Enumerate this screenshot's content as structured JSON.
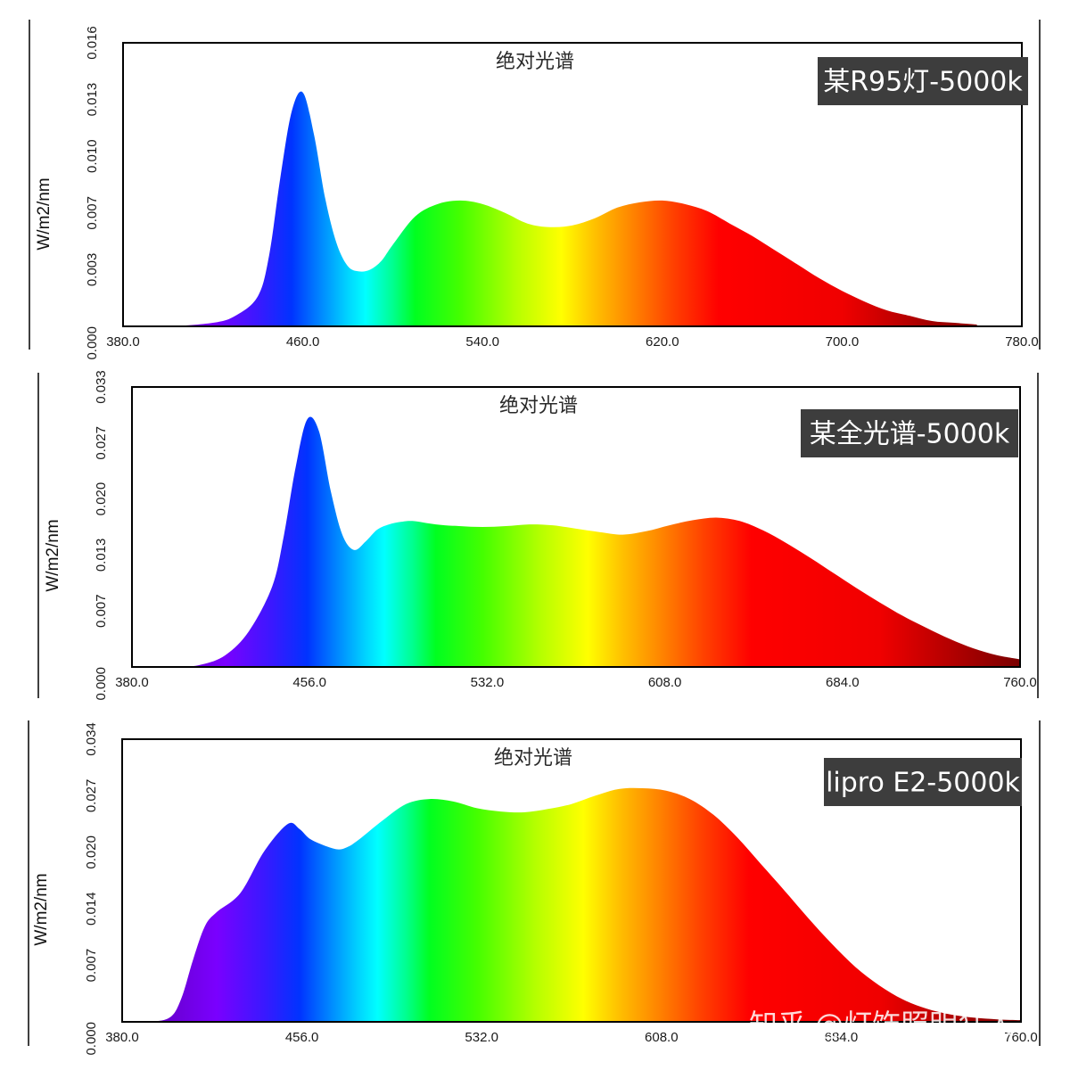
{
  "watermark": "知乎 @灯饰照明狂人",
  "spectrum_stops": [
    {
      "nm": 380,
      "color": "#5a00a8"
    },
    {
      "nm": 420,
      "color": "#7a00ff"
    },
    {
      "nm": 440,
      "color": "#3a18ff"
    },
    {
      "nm": 455,
      "color": "#0033ff"
    },
    {
      "nm": 468,
      "color": "#0088ff"
    },
    {
      "nm": 480,
      "color": "#00d4ff"
    },
    {
      "nm": 488,
      "color": "#00ffff"
    },
    {
      "nm": 500,
      "color": "#00ff90"
    },
    {
      "nm": 510,
      "color": "#00ff20"
    },
    {
      "nm": 530,
      "color": "#44ff00"
    },
    {
      "nm": 555,
      "color": "#b6ff00"
    },
    {
      "nm": 575,
      "color": "#ffff00"
    },
    {
      "nm": 590,
      "color": "#ffc000"
    },
    {
      "nm": 605,
      "color": "#ff8a00"
    },
    {
      "nm": 625,
      "color": "#ff4000"
    },
    {
      "nm": 645,
      "color": "#ff0000"
    },
    {
      "nm": 700,
      "color": "#f00000"
    },
    {
      "nm": 740,
      "color": "#a00000"
    },
    {
      "nm": 780,
      "color": "#7a0000"
    }
  ],
  "chart_data": [
    {
      "type": "area",
      "title": "绝对光谱",
      "label": "某R95灯-5000k",
      "ylabel": "W/m2/nm",
      "xlim": [
        380,
        780
      ],
      "ylim": [
        0,
        0.016
      ],
      "xticks": [
        "380.0",
        "460.0",
        "540.0",
        "620.0",
        "700.0",
        "780.0"
      ],
      "yticks": [
        "0.000",
        "0.003",
        "0.007",
        "0.010",
        "0.013",
        "0.016"
      ],
      "x": [
        380,
        400,
        420,
        430,
        440,
        445,
        450,
        455,
        460,
        465,
        470,
        475,
        480,
        485,
        490,
        495,
        500,
        510,
        520,
        530,
        540,
        550,
        560,
        570,
        580,
        590,
        600,
        610,
        620,
        630,
        640,
        650,
        660,
        670,
        680,
        690,
        700,
        710,
        720,
        730,
        740,
        750,
        760
      ],
      "y": [
        0,
        0,
        0.0002,
        0.0006,
        0.0017,
        0.004,
        0.0084,
        0.0121,
        0.0132,
        0.0108,
        0.0072,
        0.0047,
        0.0034,
        0.0031,
        0.0032,
        0.0037,
        0.0046,
        0.0062,
        0.0069,
        0.0071,
        0.0069,
        0.0064,
        0.0058,
        0.0056,
        0.0057,
        0.0061,
        0.0067,
        0.007,
        0.0071,
        0.0069,
        0.0065,
        0.0058,
        0.0051,
        0.0043,
        0.0035,
        0.0027,
        0.002,
        0.0014,
        0.0009,
        0.0006,
        0.0003,
        0.0002,
        0.0001
      ]
    },
    {
      "type": "area",
      "title": "绝对光谱",
      "label": "某全光谱-5000k",
      "ylabel": "W/m2/nm",
      "xlim": [
        380,
        760
      ],
      "ylim": [
        0,
        0.033
      ],
      "xticks": [
        "380.0",
        "456.0",
        "532.0",
        "608.0",
        "684.0",
        "760.0"
      ],
      "yticks": [
        "0.000",
        "0.007",
        "0.013",
        "0.020",
        "0.027",
        "0.033"
      ],
      "x": [
        380,
        400,
        410,
        420,
        430,
        440,
        445,
        450,
        455,
        460,
        465,
        470,
        475,
        480,
        485,
        490,
        495,
        500,
        510,
        520,
        530,
        540,
        550,
        560,
        570,
        580,
        590,
        600,
        610,
        620,
        630,
        640,
        650,
        660,
        670,
        680,
        690,
        700,
        710,
        720,
        730,
        740,
        750,
        760
      ],
      "y": [
        0,
        0,
        0.0003,
        0.0014,
        0.0042,
        0.0095,
        0.0155,
        0.0235,
        0.0292,
        0.0278,
        0.0208,
        0.0156,
        0.0138,
        0.0148,
        0.0162,
        0.0168,
        0.0171,
        0.0172,
        0.0168,
        0.0166,
        0.0165,
        0.0166,
        0.0168,
        0.0167,
        0.0163,
        0.0159,
        0.0156,
        0.016,
        0.0167,
        0.0173,
        0.0176,
        0.0172,
        0.0161,
        0.0146,
        0.0129,
        0.0111,
        0.0093,
        0.0076,
        0.006,
        0.0046,
        0.0033,
        0.0022,
        0.0014,
        0.0009
      ]
    },
    {
      "type": "area",
      "title": "绝对光谱",
      "label": "lipro E2-5000k",
      "ylabel": "W/m2/nm",
      "xlim": [
        380,
        760
      ],
      "ylim": [
        0,
        0.034
      ],
      "xticks": [
        "380.0",
        "456.0",
        "532.0",
        "608.0",
        "684.0",
        "760.0"
      ],
      "yticks": [
        "0.000",
        "0.007",
        "0.014",
        "0.020",
        "0.027",
        "0.034"
      ],
      "x": [
        380,
        390,
        400,
        405,
        410,
        415,
        420,
        430,
        440,
        450,
        455,
        460,
        470,
        475,
        480,
        490,
        500,
        510,
        520,
        530,
        540,
        550,
        560,
        570,
        580,
        590,
        600,
        610,
        620,
        630,
        640,
        650,
        660,
        670,
        680,
        690,
        700,
        710,
        720,
        730,
        740,
        750,
        760
      ],
      "y": [
        0,
        0,
        0.0005,
        0.0028,
        0.0075,
        0.0115,
        0.0132,
        0.0155,
        0.0205,
        0.0238,
        0.0232,
        0.0219,
        0.0208,
        0.021,
        0.0219,
        0.0242,
        0.0262,
        0.0268,
        0.0265,
        0.0257,
        0.0253,
        0.0252,
        0.0256,
        0.0262,
        0.0272,
        0.028,
        0.0281,
        0.0278,
        0.0268,
        0.0249,
        0.0222,
        0.019,
        0.0158,
        0.0125,
        0.0094,
        0.0066,
        0.0044,
        0.0027,
        0.0016,
        0.0009,
        0.0005,
        0.0003,
        0.0002
      ]
    }
  ]
}
